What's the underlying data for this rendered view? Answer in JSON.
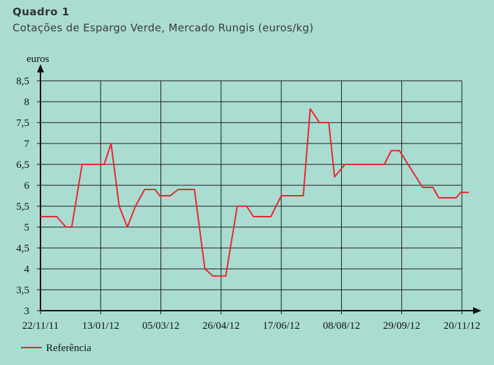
{
  "header": {
    "title": "Quadro 1",
    "subtitle": "Cotações de Espargo Verde, Mercado Rungis (euros/kg)"
  },
  "chart_data": {
    "type": "line",
    "title": "Quadro 1",
    "subtitle": "Cotações de Espargo Verde, Mercado Rungis (euros/kg)",
    "ylabel": "euros",
    "xlabel": "",
    "ylim": [
      3,
      8.5
    ],
    "yticks": [
      "3",
      "3,5",
      "4",
      "4,5",
      "5",
      "5,5",
      "6",
      "6,5",
      "7",
      "7,5",
      "8",
      "8,5"
    ],
    "xticks": [
      "22/11/11",
      "13/01/12",
      "05/03/12",
      "26/04/12",
      "17/06/12",
      "08/08/12",
      "29/09/12",
      "20/11/12"
    ],
    "xrange": [
      "2011-11-22",
      "2012-11-20"
    ],
    "grid": true,
    "legend_position": "bottom-left",
    "series": [
      {
        "name": "Referência",
        "color": "#e8262b",
        "points": [
          [
            "2011-11-22",
            5.25
          ],
          [
            "2011-12-06",
            5.25
          ],
          [
            "2011-12-14",
            5.0
          ],
          [
            "2011-12-19",
            5.0
          ],
          [
            "2011-12-28",
            6.5
          ],
          [
            "2012-01-16",
            6.5
          ],
          [
            "2012-01-22",
            7.0
          ],
          [
            "2012-01-29",
            5.5
          ],
          [
            "2012-02-05",
            5.0
          ],
          [
            "2012-02-12",
            5.5
          ],
          [
            "2012-02-20",
            5.9
          ],
          [
            "2012-02-29",
            5.9
          ],
          [
            "2012-03-04",
            5.75
          ],
          [
            "2012-03-13",
            5.75
          ],
          [
            "2012-03-20",
            5.9
          ],
          [
            "2012-04-03",
            5.9
          ],
          [
            "2012-04-12",
            4.0
          ],
          [
            "2012-04-19",
            3.83
          ],
          [
            "2012-04-30",
            3.83
          ],
          [
            "2012-05-10",
            5.5
          ],
          [
            "2012-05-18",
            5.5
          ],
          [
            "2012-05-24",
            5.25
          ],
          [
            "2012-06-08",
            5.25
          ],
          [
            "2012-06-17",
            5.75
          ],
          [
            "2012-07-06",
            5.75
          ],
          [
            "2012-07-12",
            7.83
          ],
          [
            "2012-07-20",
            7.5
          ],
          [
            "2012-07-28",
            7.5
          ],
          [
            "2012-08-02",
            6.2
          ],
          [
            "2012-08-11",
            6.5
          ],
          [
            "2012-09-14",
            6.5
          ],
          [
            "2012-09-20",
            6.83
          ],
          [
            "2012-09-27",
            6.83
          ],
          [
            "2012-10-17",
            5.95
          ],
          [
            "2012-10-26",
            5.95
          ],
          [
            "2012-10-31",
            5.7
          ],
          [
            "2012-11-15",
            5.7
          ],
          [
            "2012-11-19",
            5.83
          ],
          [
            "2012-11-26",
            5.83
          ]
        ]
      }
    ]
  },
  "style": {
    "background": "#aadcd2",
    "line_color": "#e8262b",
    "axis_color": "#111111",
    "grid_color": "#1a1a1a"
  }
}
